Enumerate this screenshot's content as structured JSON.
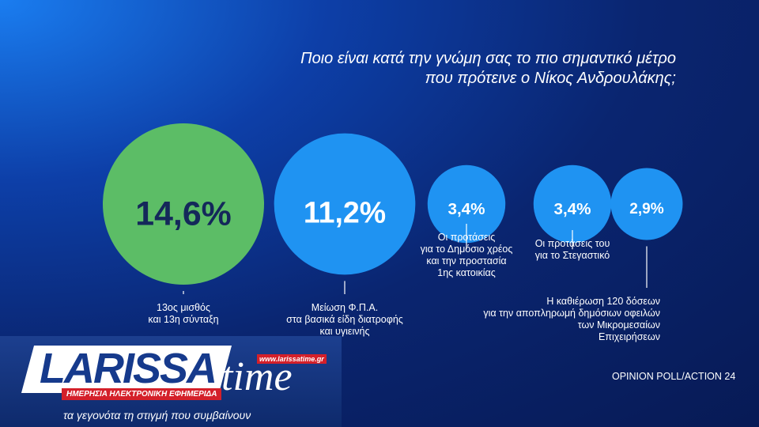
{
  "chart_data": {
    "type": "bubble",
    "title": "Ποιο είναι κατά την γνώμη σας το πιο σημαντικό μέτρο\nπου πρότεινε ο Νίκος Ανδρουλάκης;",
    "categories": [
      "13ος μισθός\nκαι 13η σύνταξη",
      "Μείωση Φ.Π.Α.\nστα βασικά είδη διατροφής\nκαι υγιεινής",
      "Οι προτάσεις\nγια το Δημόσιο χρέος\nκαι την προστασία\n1ης κατοικίας",
      "Οι προτάσεις του\nγια το Στεγαστικό",
      "Η καθιέρωση 120 δόσεων\nγια την αποπληρωμή δημόσιων οφειλών\nτων Μικρομεσαίων\nΕπιχειρήσεων"
    ],
    "values": [
      14.6,
      11.2,
      3.4,
      3.4,
      2.9
    ],
    "value_labels": [
      "14,6%",
      "11,2%",
      "3,4%",
      "3,4%",
      "2,9%"
    ],
    "colors": [
      "#5cbd66",
      "#1f93f2",
      "#1f93f2",
      "#1f93f2",
      "#1f93f2"
    ],
    "source": "OPINION POLL/ACTION 24"
  },
  "logo": {
    "name": "LARISSA",
    "name2": "time",
    "url": "www.larissatime.gr",
    "subtitle": "ΗΜΕΡΗΣΙΑ ΗΛΕΚΤΡΟΝΙΚΗ ΕΦΗΜΕΡΙΔΑ",
    "tagline": "τα γεγονότα τη στιγμή που συμβαίνουν"
  }
}
